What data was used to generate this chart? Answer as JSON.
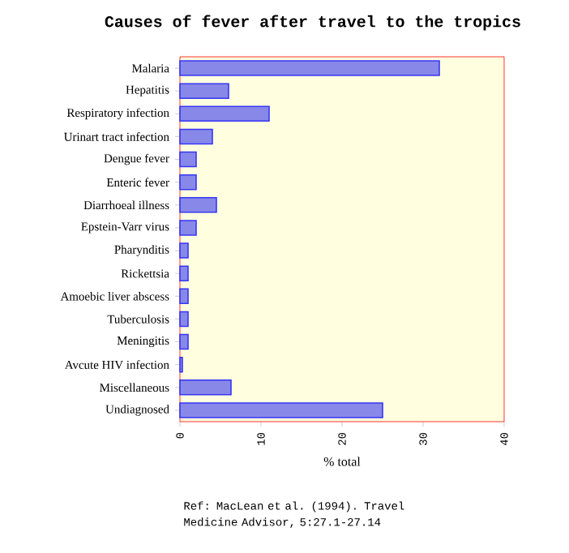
{
  "chart_data": {
    "type": "bar",
    "orientation": "horizontal",
    "title": "Causes of fever after travel to the tropics",
    "categories": [
      "Malaria",
      "Hepatitis",
      "Respiratory infection",
      "Urinart tract infection",
      "Dengue fever",
      "Enteric fever",
      "Diarrhoeal illness",
      "Epstein-Varr virus",
      "Pharynditis",
      "Rickettsia",
      "Amoebic liver abscess",
      "Tuberculosis",
      "Meningitis",
      "Avcute HIV infection",
      "Miscellaneous",
      "Undiagnosed"
    ],
    "values": [
      32,
      6,
      11,
      4,
      2,
      2,
      4.5,
      2,
      1,
      1,
      1,
      1,
      1,
      0.3,
      6.3,
      25
    ],
    "color": "#8888e8",
    "xlabel": "% total",
    "xlim": [
      0,
      40
    ],
    "xticks": [
      0,
      10,
      20,
      30,
      40
    ],
    "annotations": [
      "Ref: MacLean et al. (1994). Travel Medicine Advisor, 5:27.1-27.14"
    ]
  }
}
